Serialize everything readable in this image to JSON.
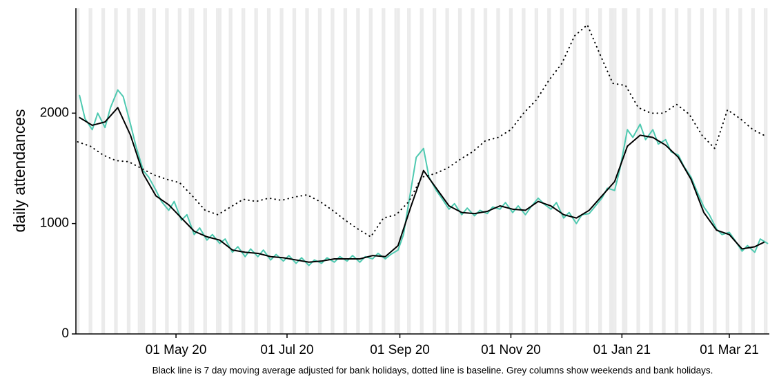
{
  "chart_data": {
    "type": "line",
    "y_label": "daily attendances",
    "caption": "Black line is 7 day moving average adjusted for bank holidays, dotted line is baseline. Grey columns show weekends and bank holidays.",
    "xlim": [
      "2020-03-07",
      "2021-03-23"
    ],
    "ylim": [
      0,
      2950
    ],
    "yticks": [
      0,
      1000,
      2000
    ],
    "xticks": [
      {
        "value": "2020-05-01",
        "label": "01 May 20"
      },
      {
        "value": "2020-07-01",
        "label": "01 Jul 20"
      },
      {
        "value": "2020-09-01",
        "label": "01 Sep 20"
      },
      {
        "value": "2020-11-01",
        "label": "01 Nov 20"
      },
      {
        "value": "2021-01-01",
        "label": "01 Jan 21"
      },
      {
        "value": "2021-03-01",
        "label": "01 Mar 21"
      }
    ],
    "shade_weekends": true,
    "shade_color": "#ebebeb",
    "bank_holidays": [
      "2020-04-10",
      "2020-04-13",
      "2020-05-08",
      "2020-05-25",
      "2020-08-31",
      "2020-12-25",
      "2020-12-28",
      "2021-01-01"
    ],
    "series": [
      {
        "color": "#4ec9b0",
        "style": "solid",
        "width": 2,
        "x": [
          "2020-03-09",
          "2020-03-12",
          "2020-03-16",
          "2020-03-19",
          "2020-03-23",
          "2020-03-26",
          "2020-03-30",
          "2020-04-02",
          "2020-04-06",
          "2020-04-09",
          "2020-04-13",
          "2020-04-16",
          "2020-04-20",
          "2020-04-23",
          "2020-04-27",
          "2020-04-30",
          "2020-05-04",
          "2020-05-07",
          "2020-05-11",
          "2020-05-14",
          "2020-05-18",
          "2020-05-21",
          "2020-05-25",
          "2020-05-28",
          "2020-06-01",
          "2020-06-04",
          "2020-06-08",
          "2020-06-11",
          "2020-06-15",
          "2020-06-18",
          "2020-06-22",
          "2020-06-25",
          "2020-06-29",
          "2020-07-02",
          "2020-07-06",
          "2020-07-09",
          "2020-07-13",
          "2020-07-16",
          "2020-07-20",
          "2020-07-23",
          "2020-07-27",
          "2020-07-30",
          "2020-08-03",
          "2020-08-06",
          "2020-08-10",
          "2020-08-13",
          "2020-08-17",
          "2020-08-20",
          "2020-08-24",
          "2020-08-27",
          "2020-08-31",
          "2020-09-03",
          "2020-09-07",
          "2020-09-10",
          "2020-09-14",
          "2020-09-17",
          "2020-09-21",
          "2020-09-24",
          "2020-09-28",
          "2020-10-01",
          "2020-10-05",
          "2020-10-08",
          "2020-10-12",
          "2020-10-15",
          "2020-10-19",
          "2020-10-22",
          "2020-10-26",
          "2020-10-29",
          "2020-11-02",
          "2020-11-05",
          "2020-11-09",
          "2020-11-12",
          "2020-11-16",
          "2020-11-19",
          "2020-11-23",
          "2020-11-26",
          "2020-11-30",
          "2020-12-03",
          "2020-12-07",
          "2020-12-10",
          "2020-12-14",
          "2020-12-17",
          "2020-12-21",
          "2020-12-24",
          "2020-12-28",
          "2020-12-31",
          "2021-01-04",
          "2021-01-07",
          "2021-01-11",
          "2021-01-14",
          "2021-01-18",
          "2021-01-21",
          "2021-01-25",
          "2021-01-28",
          "2021-02-01",
          "2021-02-04",
          "2021-02-08",
          "2021-02-11",
          "2021-02-15",
          "2021-02-18",
          "2021-02-22",
          "2021-02-25",
          "2021-03-01",
          "2021-03-04",
          "2021-03-08",
          "2021-03-11",
          "2021-03-15",
          "2021-03-18",
          "2021-03-22"
        ],
        "values": [
          2160,
          1950,
          1850,
          2000,
          1870,
          2050,
          2210,
          2150,
          1900,
          1700,
          1480,
          1420,
          1300,
          1200,
          1120,
          1200,
          1030,
          1080,
          900,
          960,
          850,
          900,
          820,
          860,
          740,
          790,
          700,
          770,
          700,
          760,
          670,
          720,
          660,
          710,
          640,
          690,
          620,
          670,
          640,
          690,
          650,
          700,
          660,
          710,
          650,
          700,
          680,
          730,
          680,
          720,
          760,
          900,
          1300,
          1600,
          1680,
          1420,
          1300,
          1230,
          1130,
          1180,
          1080,
          1140,
          1070,
          1120,
          1090,
          1150,
          1130,
          1190,
          1100,
          1160,
          1080,
          1150,
          1230,
          1180,
          1130,
          1190,
          1050,
          1100,
          1000,
          1080,
          1090,
          1150,
          1230,
          1320,
          1300,
          1500,
          1850,
          1780,
          1900,
          1760,
          1850,
          1720,
          1760,
          1650,
          1620,
          1520,
          1420,
          1300,
          1150,
          1080,
          950,
          900,
          920,
          850,
          750,
          800,
          740,
          860,
          820
        ]
      },
      {
        "color": "#000000",
        "style": "solid",
        "width": 2,
        "x": [
          "2020-03-09",
          "2020-03-16",
          "2020-03-23",
          "2020-03-30",
          "2020-04-06",
          "2020-04-13",
          "2020-04-20",
          "2020-04-27",
          "2020-05-04",
          "2020-05-11",
          "2020-05-18",
          "2020-05-25",
          "2020-06-01",
          "2020-06-08",
          "2020-06-15",
          "2020-06-22",
          "2020-06-29",
          "2020-07-06",
          "2020-07-13",
          "2020-07-20",
          "2020-07-27",
          "2020-08-03",
          "2020-08-10",
          "2020-08-17",
          "2020-08-24",
          "2020-08-31",
          "2020-09-07",
          "2020-09-14",
          "2020-09-21",
          "2020-09-28",
          "2020-10-05",
          "2020-10-12",
          "2020-10-19",
          "2020-10-26",
          "2020-11-02",
          "2020-11-09",
          "2020-11-16",
          "2020-11-23",
          "2020-11-30",
          "2020-12-07",
          "2020-12-14",
          "2020-12-21",
          "2020-12-28",
          "2021-01-04",
          "2021-01-11",
          "2021-01-18",
          "2021-01-25",
          "2021-02-01",
          "2021-02-08",
          "2021-02-15",
          "2021-02-22",
          "2021-03-01",
          "2021-03-08",
          "2021-03-15",
          "2021-03-20"
        ],
        "values": [
          1960,
          1890,
          1920,
          2050,
          1800,
          1450,
          1250,
          1170,
          1050,
          930,
          880,
          850,
          760,
          740,
          730,
          700,
          690,
          670,
          650,
          660,
          680,
          680,
          680,
          710,
          700,
          800,
          1150,
          1480,
          1320,
          1160,
          1100,
          1090,
          1110,
          1160,
          1130,
          1120,
          1200,
          1160,
          1080,
          1050,
          1120,
          1250,
          1380,
          1700,
          1800,
          1780,
          1710,
          1600,
          1400,
          1100,
          940,
          900,
          770,
          790,
          830
        ]
      },
      {
        "color": "#000000",
        "style": "dotted",
        "width": 2,
        "x": [
          "2020-03-08",
          "2020-03-15",
          "2020-03-22",
          "2020-03-29",
          "2020-04-05",
          "2020-04-12",
          "2020-04-19",
          "2020-04-26",
          "2020-05-03",
          "2020-05-10",
          "2020-05-17",
          "2020-05-24",
          "2020-05-31",
          "2020-06-07",
          "2020-06-14",
          "2020-06-21",
          "2020-06-28",
          "2020-07-05",
          "2020-07-12",
          "2020-07-19",
          "2020-07-26",
          "2020-08-02",
          "2020-08-09",
          "2020-08-16",
          "2020-08-23",
          "2020-08-30",
          "2020-09-06",
          "2020-09-13",
          "2020-09-20",
          "2020-09-27",
          "2020-10-04",
          "2020-10-11",
          "2020-10-18",
          "2020-10-25",
          "2020-11-01",
          "2020-11-08",
          "2020-11-15",
          "2020-11-22",
          "2020-11-29",
          "2020-12-06",
          "2020-12-13",
          "2020-12-20",
          "2020-12-27",
          "2021-01-03",
          "2021-01-10",
          "2021-01-17",
          "2021-01-24",
          "2021-01-31",
          "2021-02-07",
          "2021-02-14",
          "2021-02-21",
          "2021-02-28",
          "2021-03-07",
          "2021-03-14",
          "2021-03-20"
        ],
        "values": [
          1740,
          1700,
          1620,
          1570,
          1560,
          1500,
          1440,
          1400,
          1370,
          1250,
          1120,
          1080,
          1150,
          1220,
          1200,
          1230,
          1210,
          1240,
          1260,
          1200,
          1120,
          1030,
          950,
          880,
          1050,
          1080,
          1200,
          1420,
          1450,
          1500,
          1580,
          1650,
          1750,
          1780,
          1850,
          2000,
          2120,
          2300,
          2450,
          2700,
          2800,
          2530,
          2270,
          2250,
          2050,
          2000,
          2000,
          2080,
          1990,
          1800,
          1680,
          2030,
          1950,
          1850,
          1800
        ]
      }
    ]
  }
}
